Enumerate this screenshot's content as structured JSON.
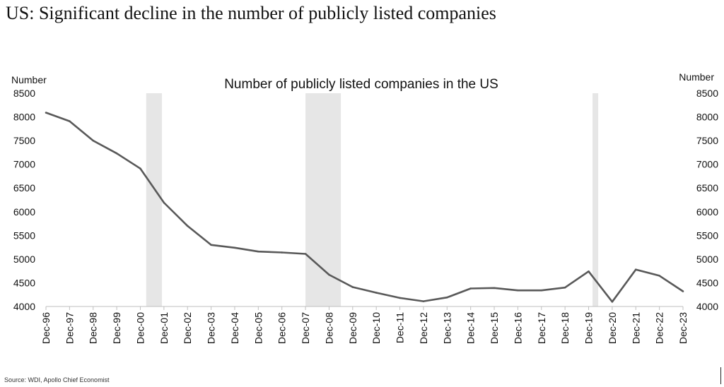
{
  "headline": "US: Significant decline in the number of publicly listed companies",
  "source": "Source: WDI, Apollo Chief Economist",
  "chart_data": {
    "type": "line",
    "title": "Number of publicly listed companies in the US",
    "ylabel_left": "Number",
    "ylabel_right": "Number",
    "ylim": [
      4000,
      8500
    ],
    "yticks": [
      4000,
      4500,
      5000,
      5500,
      6000,
      6500,
      7000,
      7500,
      8000,
      8500
    ],
    "categories": [
      "Dec-96",
      "Dec-97",
      "Dec-98",
      "Dec-99",
      "Dec-00",
      "Dec-01",
      "Dec-02",
      "Dec-03",
      "Dec-04",
      "Dec-05",
      "Dec-06",
      "Dec-07",
      "Dec-08",
      "Dec-09",
      "Dec-10",
      "Dec-11",
      "Dec-12",
      "Dec-13",
      "Dec-14",
      "Dec-15",
      "Dec-16",
      "Dec-17",
      "Dec-18",
      "Dec-19",
      "Dec-20",
      "Dec-21",
      "Dec-22",
      "Dec-23"
    ],
    "series": [
      {
        "values": [
          8090,
          7910,
          7500,
          7230,
          6910,
          6190,
          5700,
          5300,
          5240,
          5160,
          5140,
          5110,
          4670,
          4410,
          4290,
          4180,
          4110,
          4190,
          4380,
          4390,
          4340,
          4340,
          4400,
          4740,
          4100,
          4780,
          4650,
          4320
        ],
        "color": "#595959"
      }
    ],
    "recessions": [
      {
        "start": "Mar-01",
        "end": "Nov-01"
      },
      {
        "start": "Dec-07",
        "end": "Jun-09"
      },
      {
        "start": "Feb-20",
        "end": "Apr-20"
      }
    ],
    "recession_color": "#e6e6e6",
    "grid": false,
    "legend": "none"
  }
}
